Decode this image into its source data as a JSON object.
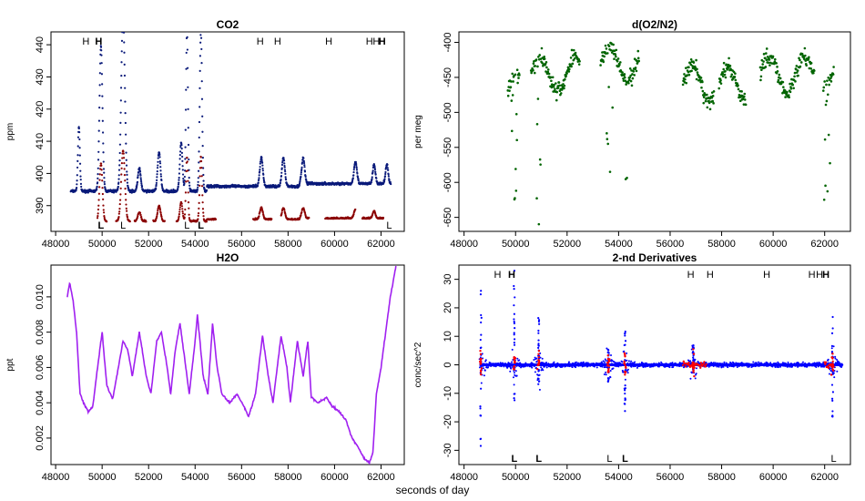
{
  "figure": {
    "xlabel": "seconds of day"
  },
  "chart_data": [
    {
      "id": "co2",
      "type": "scatter",
      "title": "CO2",
      "ylabel": "ppm",
      "xlim": [
        47800,
        63000
      ],
      "ylim": [
        382,
        444
      ],
      "xticks": [
        48000,
        50000,
        52000,
        54000,
        56000,
        58000,
        60000,
        62000
      ],
      "yticks": [
        390,
        400,
        410,
        420,
        430,
        440
      ],
      "colors": {
        "baseline": "#0a1a7a",
        "excess": "#8b0000"
      },
      "peaks": [
        {
          "x": 49000,
          "h": 20,
          "w": 60
        },
        {
          "x": 49950,
          "h": 45,
          "w": 90
        },
        {
          "x": 50900,
          "h": 55,
          "w": 110
        },
        {
          "x": 51600,
          "h": 7,
          "w": 90
        },
        {
          "x": 52450,
          "h": 12,
          "w": 90
        },
        {
          "x": 53400,
          "h": 15,
          "w": 80
        },
        {
          "x": 53650,
          "h": 50,
          "w": 60
        },
        {
          "x": 54250,
          "h": 50,
          "w": 70
        },
        {
          "x": 56850,
          "h": 9,
          "w": 90
        },
        {
          "x": 57800,
          "h": 9,
          "w": 90
        },
        {
          "x": 58650,
          "h": 8,
          "w": 90
        },
        {
          "x": 60900,
          "h": 7,
          "w": 90
        },
        {
          "x": 61700,
          "h": 6,
          "w": 80
        },
        {
          "x": 62250,
          "h": 6,
          "w": 80
        }
      ],
      "top_marks": [
        {
          "x": 49300,
          "label": "H",
          "bold": false
        },
        {
          "x": 49850,
          "label": "H",
          "bold": true
        },
        {
          "x": 56800,
          "label": "H",
          "bold": false
        },
        {
          "x": 57550,
          "label": "H",
          "bold": false
        },
        {
          "x": 59750,
          "label": "H",
          "bold": false
        },
        {
          "x": 61500,
          "label": "H",
          "bold": false
        },
        {
          "x": 61800,
          "label": "H",
          "bold": false
        },
        {
          "x": 62050,
          "label": "H",
          "bold": true
        }
      ],
      "bottom_marks": [
        {
          "x": 49950,
          "label": "L",
          "bold": true
        },
        {
          "x": 50900,
          "label": "L",
          "bold": false
        },
        {
          "x": 53650,
          "label": "L",
          "bold": false
        },
        {
          "x": 54250,
          "label": "L",
          "bold": true
        },
        {
          "x": 62350,
          "label": "L",
          "bold": false
        }
      ]
    },
    {
      "id": "o2n2",
      "type": "scatter",
      "title": "d(O2/N2)",
      "ylabel": "per meg",
      "xlim": [
        47800,
        63000
      ],
      "ylim": [
        -670,
        -385
      ],
      "xticks": [
        48000,
        50000,
        52000,
        54000,
        56000,
        58000,
        60000,
        62000
      ],
      "yticks": [
        -400,
        -450,
        -500,
        -550,
        -600,
        -650
      ],
      "colors": {
        "points": "#006400"
      },
      "segments": [
        {
          "x0": 49700,
          "x1": 50150,
          "base": -470
        },
        {
          "x0": 50600,
          "x1": 52500,
          "base": -445
        },
        {
          "x0": 53300,
          "x1": 54800,
          "base": -430
        },
        {
          "x0": 56500,
          "x1": 57700,
          "base": -460
        },
        {
          "x0": 57900,
          "x1": 58950,
          "base": -460
        },
        {
          "x0": 59500,
          "x1": 61600,
          "base": -445
        },
        {
          "x0": 61950,
          "x1": 62350,
          "base": -470
        }
      ],
      "dips": [
        {
          "x": 49950,
          "min": -650
        },
        {
          "x": 50900,
          "min": -665
        },
        {
          "x": 53650,
          "min": -630
        },
        {
          "x": 54250,
          "min": -645
        },
        {
          "x": 62100,
          "min": -650
        }
      ]
    },
    {
      "id": "h2o",
      "type": "line",
      "title": "H2O",
      "ylabel": "ppt",
      "xlim": [
        47800,
        63000
      ],
      "ylim": [
        0.0005,
        0.0118
      ],
      "xticks": [
        48000,
        50000,
        52000,
        54000,
        56000,
        58000,
        60000,
        62000
      ],
      "yticks": [
        0.002,
        0.004,
        0.006,
        0.008,
        0.01
      ],
      "colors": {
        "line": "#a020f0"
      },
      "points": [
        [
          48500,
          0.01
        ],
        [
          48600,
          0.0108
        ],
        [
          48750,
          0.0098
        ],
        [
          48900,
          0.008
        ],
        [
          49050,
          0.0045
        ],
        [
          49200,
          0.004
        ],
        [
          49400,
          0.0035
        ],
        [
          49600,
          0.0038
        ],
        [
          49900,
          0.007
        ],
        [
          50000,
          0.008
        ],
        [
          50200,
          0.005
        ],
        [
          50450,
          0.0042
        ],
        [
          50700,
          0.006
        ],
        [
          50900,
          0.0075
        ],
        [
          51100,
          0.007
        ],
        [
          51300,
          0.0055
        ],
        [
          51600,
          0.008
        ],
        [
          51900,
          0.0055
        ],
        [
          52100,
          0.0045
        ],
        [
          52350,
          0.0075
        ],
        [
          52550,
          0.008
        ],
        [
          52800,
          0.006
        ],
        [
          52950,
          0.0045
        ],
        [
          53150,
          0.007
        ],
        [
          53350,
          0.0085
        ],
        [
          53600,
          0.006
        ],
        [
          53750,
          0.0045
        ],
        [
          54000,
          0.0075
        ],
        [
          54100,
          0.009
        ],
        [
          54350,
          0.0055
        ],
        [
          54550,
          0.0045
        ],
        [
          54750,
          0.0085
        ],
        [
          54950,
          0.006
        ],
        [
          55150,
          0.0045
        ],
        [
          55500,
          0.004
        ],
        [
          55800,
          0.0045
        ],
        [
          56100,
          0.0038
        ],
        [
          56300,
          0.0032
        ],
        [
          56600,
          0.0045
        ],
        [
          56900,
          0.0078
        ],
        [
          57150,
          0.0055
        ],
        [
          57350,
          0.004
        ],
        [
          57700,
          0.0078
        ],
        [
          57950,
          0.006
        ],
        [
          58100,
          0.004
        ],
        [
          58400,
          0.0075
        ],
        [
          58650,
          0.0055
        ],
        [
          58850,
          0.0075
        ],
        [
          59000,
          0.0043
        ],
        [
          59300,
          0.004
        ],
        [
          59650,
          0.0043
        ],
        [
          59900,
          0.0038
        ],
        [
          60200,
          0.0035
        ],
        [
          60500,
          0.003
        ],
        [
          60750,
          0.002
        ],
        [
          61000,
          0.0015
        ],
        [
          61300,
          0.0008
        ],
        [
          61500,
          0.0006
        ],
        [
          61650,
          0.0012
        ],
        [
          61800,
          0.0045
        ],
        [
          62000,
          0.006
        ],
        [
          62200,
          0.008
        ],
        [
          62400,
          0.01
        ],
        [
          62650,
          0.0118
        ]
      ]
    },
    {
      "id": "deriv",
      "type": "scatter",
      "title": "2-nd Derivatives",
      "ylabel": "conc/sec^2",
      "xlim": [
        47800,
        63000
      ],
      "ylim": [
        -35,
        35
      ],
      "xticks": [
        48000,
        50000,
        52000,
        54000,
        56000,
        58000,
        60000,
        62000
      ],
      "yticks": [
        -30,
        -20,
        -10,
        0,
        10,
        20,
        30
      ],
      "colors": {
        "series_a": "#0000ff",
        "series_b": "#ff0000"
      },
      "spikes": [
        {
          "x": 48650,
          "max": 26,
          "min": -33
        },
        {
          "x": 49950,
          "max": 33,
          "min": -16
        },
        {
          "x": 50900,
          "max": 18,
          "min": -7
        },
        {
          "x": 53600,
          "max": 7,
          "min": -6
        },
        {
          "x": 54250,
          "max": 12,
          "min": -17
        },
        {
          "x": 56900,
          "max": 8,
          "min": -3
        },
        {
          "x": 62300,
          "max": 20,
          "min": -19
        }
      ],
      "top_marks": [
        {
          "x": 49300,
          "label": "H",
          "bold": false
        },
        {
          "x": 49850,
          "label": "H",
          "bold": true
        },
        {
          "x": 56800,
          "label": "H",
          "bold": false
        },
        {
          "x": 57550,
          "label": "H",
          "bold": false
        },
        {
          "x": 59750,
          "label": "H",
          "bold": false
        },
        {
          "x": 61500,
          "label": "H",
          "bold": false
        },
        {
          "x": 61800,
          "label": "H",
          "bold": false
        },
        {
          "x": 62050,
          "label": "H",
          "bold": true
        }
      ],
      "bottom_marks": [
        {
          "x": 49950,
          "label": "L",
          "bold": true
        },
        {
          "x": 50900,
          "label": "L",
          "bold": true
        },
        {
          "x": 53650,
          "label": "L",
          "bold": false
        },
        {
          "x": 54250,
          "label": "L",
          "bold": true
        },
        {
          "x": 62350,
          "label": "L",
          "bold": false
        }
      ]
    }
  ]
}
